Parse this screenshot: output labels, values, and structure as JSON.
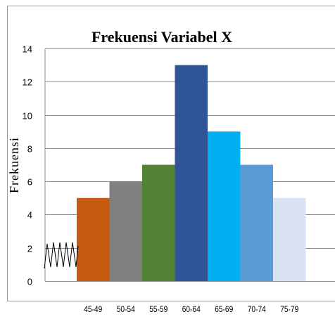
{
  "chart_data": {
    "type": "bar",
    "title": "Frekuensi Variabel X",
    "ylabel": "Frekuensi",
    "xlabel": "",
    "categories": [
      "45-49",
      "50-54",
      "55-59",
      "60-64",
      "65-69",
      "70-74",
      "75-79"
    ],
    "values": [
      5,
      6,
      7,
      13,
      9,
      7,
      5
    ],
    "ylim": [
      0,
      14
    ],
    "yticks": [
      0,
      2,
      4,
      6,
      8,
      10,
      12,
      14
    ],
    "grid": true,
    "legend": "none",
    "bar_colors": [
      "#c55a11",
      "#808080",
      "#548235",
      "#2f5597",
      "#00b0f0",
      "#5b9bd5",
      "#dae3f3"
    ],
    "axis_break": true
  }
}
